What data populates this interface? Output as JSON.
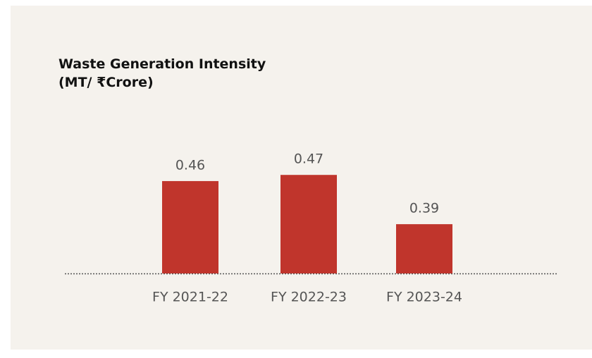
{
  "chart_data": {
    "type": "bar",
    "title": "Waste Generation Intensity (MT/ ₹Crore)",
    "categories": [
      "FY 2021-22",
      "FY 2022-23",
      "FY 2023-24"
    ],
    "values": [
      0.46,
      0.47,
      0.39
    ],
    "color": "#c0352c",
    "ylim": [
      0.31,
      0.5
    ]
  }
}
